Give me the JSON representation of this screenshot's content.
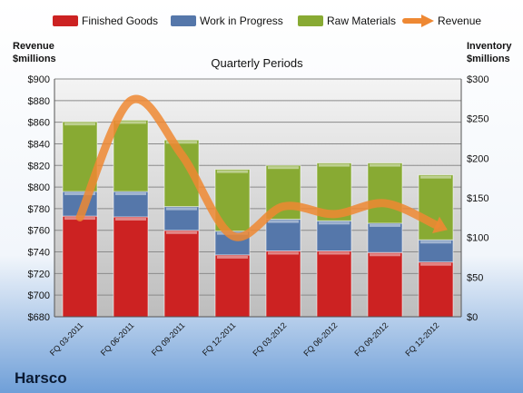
{
  "colors": {
    "finished_goods": "#cc2222",
    "work_in_progress": "#5577aa",
    "raw_materials": "#88aa33",
    "revenue": "#ee8833"
  },
  "chart_data": {
    "type": "bar",
    "stacked": true,
    "title": "Quarterly Periods",
    "company": "Harsco",
    "left_axis": {
      "label_line1": "Revenue",
      "label_line2": "$millions",
      "range": [
        680,
        900
      ],
      "step": 20,
      "prefix": "$"
    },
    "right_axis": {
      "label_line1": "Inventory",
      "label_line2": "$millions",
      "range": [
        0,
        300
      ],
      "step": 50,
      "prefix": "$"
    },
    "categories": [
      "FQ 03-2011",
      "FQ 06-2011",
      "FQ 09-2011",
      "FQ 12-2011",
      "FQ 03-2012",
      "FQ 06-2012",
      "FQ 09-2012",
      "FQ 12-2012"
    ],
    "series": [
      {
        "name": "Finished Goods",
        "axis": "right",
        "type": "bar",
        "values": [
          127,
          126,
          109,
          78,
          83,
          83,
          81,
          69
        ]
      },
      {
        "name": "Work in Progress",
        "axis": "right",
        "type": "bar",
        "values": [
          31,
          32,
          30,
          30,
          40,
          38,
          37,
          28
        ]
      },
      {
        "name": "Raw Materials",
        "axis": "right",
        "type": "bar",
        "values": [
          88,
          90,
          84,
          78,
          68,
          73,
          76,
          82
        ]
      },
      {
        "name": "Revenue",
        "axis": "left",
        "type": "line",
        "values": [
          772,
          880,
          830,
          755,
          782,
          775,
          785,
          765
        ]
      }
    ],
    "grid": true,
    "legend_position": "top"
  }
}
